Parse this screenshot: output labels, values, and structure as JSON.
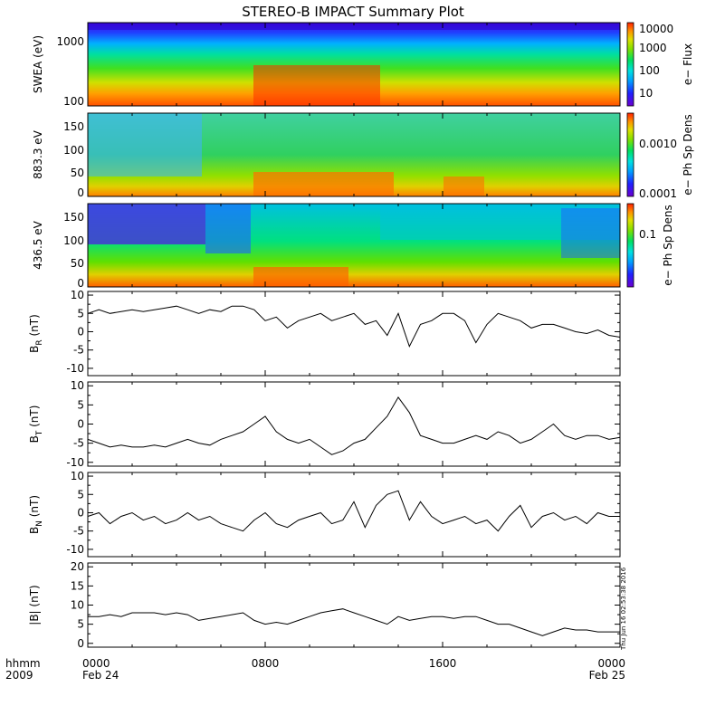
{
  "title": "STEREO-B IMPACT Summary Plot",
  "x_axis": {
    "row1_label": "hhmm",
    "row2_label": "2009",
    "ticks": [
      {
        "time": "0000",
        "date": "Feb 24",
        "hour": 0
      },
      {
        "time": "0800",
        "date": "",
        "hour": 8
      },
      {
        "time": "1600",
        "date": "",
        "hour": 16
      },
      {
        "time": "0000",
        "date": "Feb 25",
        "hour": 24
      }
    ]
  },
  "timestamp": "Thu Jun 16 02:53:38 2016",
  "colors": {
    "spectrogram_scale": [
      "#6a00d0",
      "#2020ff",
      "#00a0ff",
      "#00e0e0",
      "#00e060",
      "#80e000",
      "#e0e000",
      "#ff9000",
      "#ff2000"
    ]
  },
  "chart_data": [
    {
      "type": "heatmap",
      "id": "swea",
      "ylabel": "SWEA (eV)",
      "ylim": [
        90,
        2000
      ],
      "yscale": "log",
      "yticks": [
        "1000",
        "100"
      ],
      "colorbar": {
        "label": "e− Flux",
        "ticks": [
          "10000",
          "1000",
          "100",
          "10"
        ],
        "scale": "log",
        "range": [
          3,
          20000
        ]
      },
      "xlim": [
        0,
        24
      ]
    },
    {
      "type": "heatmap",
      "id": "pad883",
      "ylabel": "883.3 eV",
      "ylim": [
        0,
        180
      ],
      "yticks": [
        "150",
        "100",
        "50",
        "0"
      ],
      "colorbar": {
        "label": "e− Ph Sp Dens",
        "ticks": [
          "0.0010",
          "0.0001"
        ],
        "scale": "log",
        "range": [
          0.0001,
          0.004
        ]
      },
      "xlim": [
        0,
        24
      ]
    },
    {
      "type": "heatmap",
      "id": "pad436",
      "ylabel": "436.5 eV",
      "ylim": [
        0,
        180
      ],
      "yticks": [
        "150",
        "100",
        "50",
        "0"
      ],
      "colorbar": {
        "label": "e− Ph Sp Dens",
        "ticks": [
          "0.1"
        ],
        "scale": "log",
        "range": [
          0.01,
          0.3
        ]
      },
      "xlim": [
        0,
        24
      ]
    },
    {
      "type": "line",
      "id": "br",
      "ylabel_main": "B",
      "ylabel_sub": "R",
      "ylabel_unit": " (nT)",
      "ylim": [
        -12,
        11
      ],
      "yticks": [
        10,
        5,
        0,
        -5,
        -10
      ],
      "xlim": [
        0,
        24
      ],
      "x": [
        0,
        0.5,
        1,
        1.5,
        2,
        2.5,
        3,
        3.5,
        4,
        4.5,
        5,
        5.5,
        6,
        6.5,
        7,
        7.5,
        8,
        8.5,
        9,
        9.5,
        10,
        10.5,
        11,
        11.5,
        12,
        12.5,
        13,
        13.5,
        14,
        14.5,
        15,
        15.5,
        16,
        16.5,
        17,
        17.5,
        18,
        18.5,
        19,
        19.5,
        20,
        20.5,
        21,
        21.5,
        22,
        22.5,
        23,
        23.5,
        24
      ],
      "y": [
        5,
        6,
        5,
        5.5,
        6,
        5.5,
        6,
        6.5,
        7,
        6,
        5,
        6,
        5.5,
        7,
        7,
        6,
        3,
        4,
        1,
        3,
        4,
        5,
        3,
        4,
        5,
        2,
        3,
        -1,
        5,
        -4,
        2,
        3,
        5,
        5,
        3,
        -3,
        2,
        5,
        4,
        3,
        1,
        2,
        2,
        1,
        0,
        -0.5,
        0.5,
        -1,
        -1.5
      ]
    },
    {
      "type": "line",
      "id": "bt",
      "ylabel_main": "B",
      "ylabel_sub": "T",
      "ylabel_unit": " (nT)",
      "ylim": [
        -11,
        11
      ],
      "yticks": [
        10,
        5,
        0,
        -5,
        -10
      ],
      "xlim": [
        0,
        24
      ],
      "x": [
        0,
        0.5,
        1,
        1.5,
        2,
        2.5,
        3,
        3.5,
        4,
        4.5,
        5,
        5.5,
        6,
        6.5,
        7,
        7.5,
        8,
        8.5,
        9,
        9.5,
        10,
        10.5,
        11,
        11.5,
        12,
        12.5,
        13,
        13.5,
        14,
        14.5,
        15,
        15.5,
        16,
        16.5,
        17,
        17.5,
        18,
        18.5,
        19,
        19.5,
        20,
        20.5,
        21,
        21.5,
        22,
        22.5,
        23,
        23.5,
        24
      ],
      "y": [
        -4,
        -5,
        -6,
        -5.5,
        -6,
        -6,
        -5.5,
        -6,
        -5,
        -4,
        -5,
        -5.5,
        -4,
        -3,
        -2,
        0,
        2,
        -2,
        -4,
        -5,
        -4,
        -6,
        -8,
        -7,
        -5,
        -4,
        -1,
        2,
        7,
        3,
        -3,
        -4,
        -5,
        -5,
        -4,
        -3,
        -4,
        -2,
        -3,
        -5,
        -4,
        -2,
        0,
        -3,
        -4,
        -3,
        -3,
        -4,
        -3.5
      ]
    },
    {
      "type": "line",
      "id": "bn",
      "ylabel_main": "B",
      "ylabel_sub": "N",
      "ylabel_unit": " (nT)",
      "ylim": [
        -12,
        11
      ],
      "yticks": [
        10,
        5,
        0,
        -5,
        -10
      ],
      "xlim": [
        0,
        24
      ],
      "x": [
        0,
        0.5,
        1,
        1.5,
        2,
        2.5,
        3,
        3.5,
        4,
        4.5,
        5,
        5.5,
        6,
        6.5,
        7,
        7.5,
        8,
        8.5,
        9,
        9.5,
        10,
        10.5,
        11,
        11.5,
        12,
        12.5,
        13,
        13.5,
        14,
        14.5,
        15,
        15.5,
        16,
        16.5,
        17,
        17.5,
        18,
        18.5,
        19,
        19.5,
        20,
        20.5,
        21,
        21.5,
        22,
        22.5,
        23,
        23.5,
        24
      ],
      "y": [
        -1,
        0,
        -3,
        -1,
        0,
        -2,
        -1,
        -3,
        -2,
        0,
        -2,
        -1,
        -3,
        -4,
        -5,
        -2,
        0,
        -3,
        -4,
        -2,
        -1,
        0,
        -3,
        -2,
        3,
        -4,
        2,
        5,
        6,
        -2,
        3,
        -1,
        -3,
        -2,
        -1,
        -3,
        -2,
        -5,
        -1,
        2,
        -4,
        -1,
        0,
        -2,
        -1,
        -3,
        0,
        -1,
        -1
      ]
    },
    {
      "type": "line",
      "id": "bmag",
      "ylabel_main": "|B|",
      "ylabel_sub": "",
      "ylabel_unit": " (nT)",
      "ylim": [
        -1,
        21
      ],
      "yticks": [
        20,
        15,
        10,
        5,
        0
      ],
      "xlim": [
        0,
        24
      ],
      "x": [
        0,
        0.5,
        1,
        1.5,
        2,
        2.5,
        3,
        3.5,
        4,
        4.5,
        5,
        5.5,
        6,
        6.5,
        7,
        7.5,
        8,
        8.5,
        9,
        9.5,
        10,
        10.5,
        11,
        11.5,
        12,
        12.5,
        13,
        13.5,
        14,
        14.5,
        15,
        15.5,
        16,
        16.5,
        17,
        17.5,
        18,
        18.5,
        19,
        19.5,
        20,
        20.5,
        21,
        21.5,
        22,
        22.5,
        23,
        23.5,
        24
      ],
      "y": [
        7,
        7,
        7.5,
        7,
        8,
        8,
        8,
        7.5,
        8,
        7.5,
        6,
        6.5,
        7,
        7.5,
        8,
        6,
        5,
        5.5,
        5,
        6,
        7,
        8,
        8.5,
        9,
        8,
        7,
        6,
        5,
        7,
        6,
        6.5,
        7,
        7,
        6.5,
        7,
        7,
        6,
        5,
        5,
        4,
        3,
        2,
        3,
        4,
        3.5,
        3.5,
        3,
        3,
        3
      ]
    }
  ]
}
